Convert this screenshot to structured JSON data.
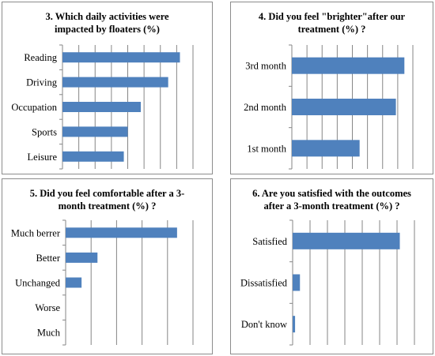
{
  "chart_data": [
    {
      "type": "bar",
      "orientation": "horizontal",
      "title_lines": [
        "3. Which daily activities were",
        "impacted by floaters (%)"
      ],
      "categories": [
        "Reading",
        "Driving",
        "Occupation",
        "Sports",
        "Leisure"
      ],
      "values": [
        90,
        81,
        60,
        50,
        47
      ],
      "xlim": [
        0,
        100
      ],
      "x_gridlines": 8,
      "grid": true,
      "bar_color": "#4f81bd"
    },
    {
      "type": "bar",
      "orientation": "horizontal",
      "title_lines": [
        "4. Did you feel \"brighter\"after our",
        "treatment (%) ?"
      ],
      "categories": [
        "3rd month",
        "2nd month",
        "1st month"
      ],
      "values": [
        93,
        86,
        56
      ],
      "xlim": [
        0,
        100
      ],
      "x_gridlines": 8,
      "grid": true,
      "bar_color": "#4f81bd"
    },
    {
      "type": "bar",
      "orientation": "horizontal",
      "title_lines": [
        "5. Did you feel comfortable after a 3-",
        "month treatment (%) ?"
      ],
      "categories": [
        "Much berrer",
        "Better",
        "Unchanged",
        "Worse",
        "Much"
      ],
      "values": [
        70,
        20,
        10,
        0,
        0
      ],
      "xlim": [
        0,
        80
      ],
      "x_gridlines": 5,
      "grid": true,
      "bar_color": "#4f81bd"
    },
    {
      "type": "bar",
      "orientation": "horizontal",
      "title_lines": [
        "6. Are you satisfied with the outcomes",
        "after a 3-month treatment (%) ?"
      ],
      "categories": [
        "Satisfied",
        "Dissatisfied",
        "Don't know"
      ],
      "values": [
        88,
        6,
        2
      ],
      "xlim": [
        0,
        100
      ],
      "x_gridlines": 7,
      "grid": true,
      "bar_color": "#4f81bd"
    }
  ]
}
